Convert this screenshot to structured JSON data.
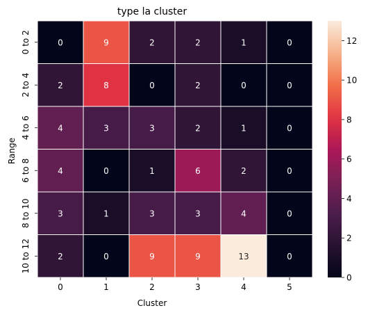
{
  "chart_data": {
    "type": "heatmap",
    "title": "type la cluster",
    "xlabel": "Cluster",
    "ylabel": "Range",
    "x_categories": [
      "0",
      "1",
      "2",
      "3",
      "4",
      "5"
    ],
    "y_categories": [
      "0 to 2",
      "2 to 4",
      "4 to 6",
      "6 to 8",
      "8 to 10",
      "10 to 12"
    ],
    "values": [
      [
        0,
        9,
        2,
        2,
        1,
        0
      ],
      [
        2,
        8,
        0,
        2,
        0,
        0
      ],
      [
        4,
        3,
        3,
        2,
        1,
        0
      ],
      [
        4,
        0,
        1,
        6,
        2,
        0
      ],
      [
        3,
        1,
        3,
        3,
        4,
        0
      ],
      [
        2,
        0,
        9,
        9,
        13,
        0
      ]
    ],
    "colorbar": {
      "min": 0,
      "max": 13,
      "ticks": [
        0,
        2,
        4,
        6,
        8,
        10,
        12
      ],
      "colormap": "rocket"
    },
    "annotations": true,
    "grid": false
  }
}
